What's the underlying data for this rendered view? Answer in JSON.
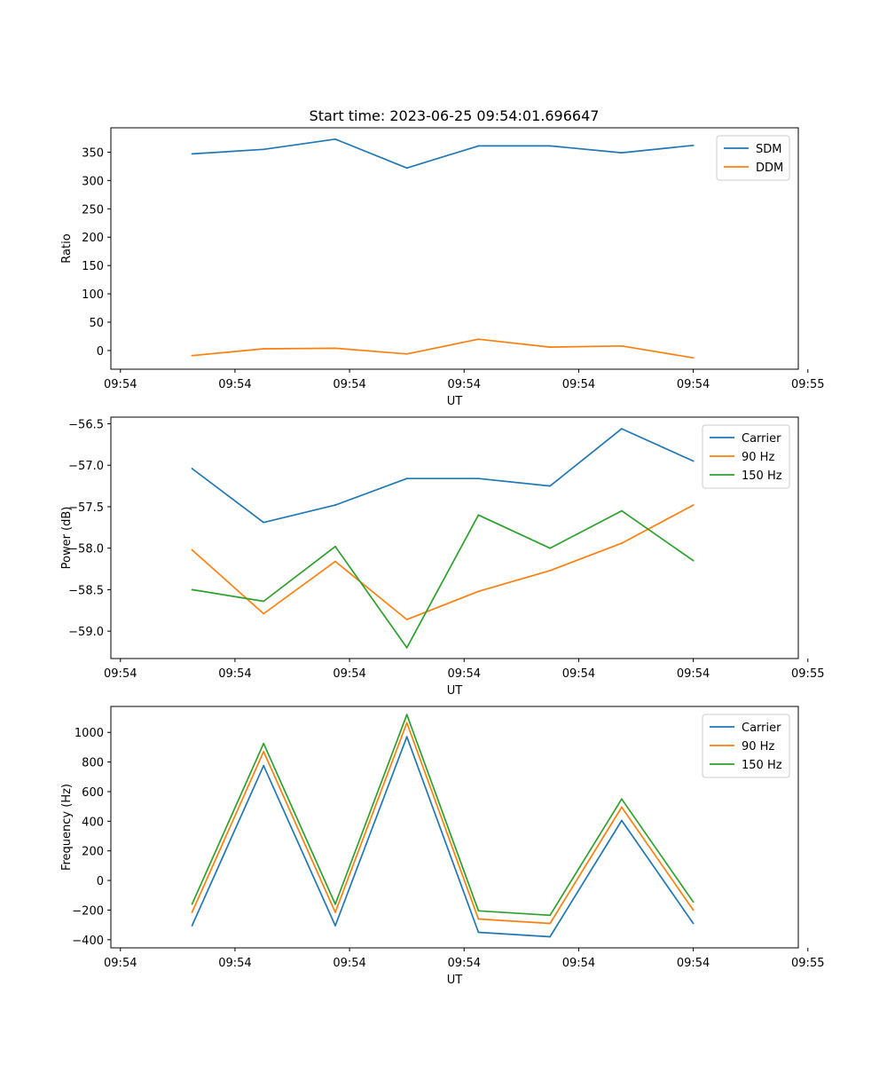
{
  "figure_title": "Start time: 2023-06-25 09:54:01.696647",
  "chart_data": [
    {
      "type": "line",
      "title": "Start time: 2023-06-25 09:54:01.696647",
      "xlabel": "UT",
      "ylabel": "Ratio",
      "x": [
        0.75,
        1.5,
        2.25,
        3.0,
        3.75,
        4.5,
        5.25,
        6.0
      ],
      "xlim": [
        -0.1,
        7.1
      ],
      "ylim": [
        -33,
        393
      ],
      "xticks": [
        0,
        1.2,
        2.4,
        3.6,
        4.8,
        6.0,
        7.2
      ],
      "xtick_labels": [
        "09:54",
        "09:54",
        "09:54",
        "09:54",
        "09:54",
        "09:54",
        "09:55"
      ],
      "yticks": [
        0,
        50,
        100,
        150,
        200,
        250,
        300,
        350
      ],
      "ytick_labels": [
        "0",
        "50",
        "100",
        "150",
        "200",
        "250",
        "300",
        "350"
      ],
      "legend": "top-right",
      "series": [
        {
          "name": "SDM",
          "color": "#1f77b4",
          "values": [
            347,
            355,
            373,
            322,
            361,
            361,
            349,
            362
          ]
        },
        {
          "name": "DDM",
          "color": "#ff7f0e",
          "values": [
            -9,
            3,
            4,
            -6,
            20,
            6,
            8,
            -13
          ]
        }
      ]
    },
    {
      "type": "line",
      "xlabel": "UT",
      "ylabel": "Power (dB)",
      "x": [
        0.75,
        1.5,
        2.25,
        3.0,
        3.75,
        4.5,
        5.25,
        6.0
      ],
      "xlim": [
        -0.1,
        7.1
      ],
      "ylim": [
        -59.33,
        -56.42
      ],
      "xticks": [
        0,
        1.2,
        2.4,
        3.6,
        4.8,
        6.0,
        7.2
      ],
      "xtick_labels": [
        "09:54",
        "09:54",
        "09:54",
        "09:54",
        "09:54",
        "09:54",
        "09:55"
      ],
      "yticks": [
        -59.0,
        -58.5,
        -58.0,
        -57.5,
        -57.0,
        -56.5
      ],
      "ytick_labels": [
        "−59.0",
        "−58.5",
        "−58.0",
        "−57.5",
        "−57.0",
        "−56.5"
      ],
      "legend": "top-right",
      "series": [
        {
          "name": "Carrier",
          "color": "#1f77b4",
          "values": [
            -57.04,
            -57.69,
            -57.48,
            -57.16,
            -57.16,
            -57.25,
            -56.56,
            -56.95
          ]
        },
        {
          "name": "90 Hz",
          "color": "#ff7f0e",
          "values": [
            -58.02,
            -58.79,
            -58.16,
            -58.86,
            -58.52,
            -58.27,
            -57.94,
            -57.48
          ]
        },
        {
          "name": "150 Hz",
          "color": "#2ca02c",
          "values": [
            -58.5,
            -58.64,
            -57.98,
            -59.2,
            -57.6,
            -58.0,
            -57.55,
            -58.15
          ]
        }
      ]
    },
    {
      "type": "line",
      "xlabel": "UT",
      "ylabel": "Frequency (Hz)",
      "x": [
        0.75,
        1.5,
        2.25,
        3.0,
        3.75,
        4.5,
        5.25,
        6.0
      ],
      "xlim": [
        -0.1,
        7.1
      ],
      "ylim": [
        -455,
        1175
      ],
      "xticks": [
        0,
        1.2,
        2.4,
        3.6,
        4.8,
        6.0,
        7.2
      ],
      "xtick_labels": [
        "09:54",
        "09:54",
        "09:54",
        "09:54",
        "09:54",
        "09:54",
        "09:55"
      ],
      "yticks": [
        -400,
        -200,
        0,
        200,
        400,
        600,
        800,
        1000
      ],
      "ytick_labels": [
        "−400",
        "−200",
        "0",
        "200",
        "400",
        "600",
        "800",
        "1000"
      ],
      "legend": "top-right",
      "series": [
        {
          "name": "Carrier",
          "color": "#1f77b4",
          "values": [
            -305,
            775,
            -305,
            970,
            -350,
            -380,
            405,
            -290
          ]
        },
        {
          "name": "90 Hz",
          "color": "#ff7f0e",
          "values": [
            -215,
            870,
            -215,
            1065,
            -260,
            -290,
            495,
            -200
          ]
        },
        {
          "name": "150 Hz",
          "color": "#2ca02c",
          "values": [
            -160,
            925,
            -160,
            1120,
            -205,
            -235,
            550,
            -145
          ]
        }
      ]
    }
  ]
}
